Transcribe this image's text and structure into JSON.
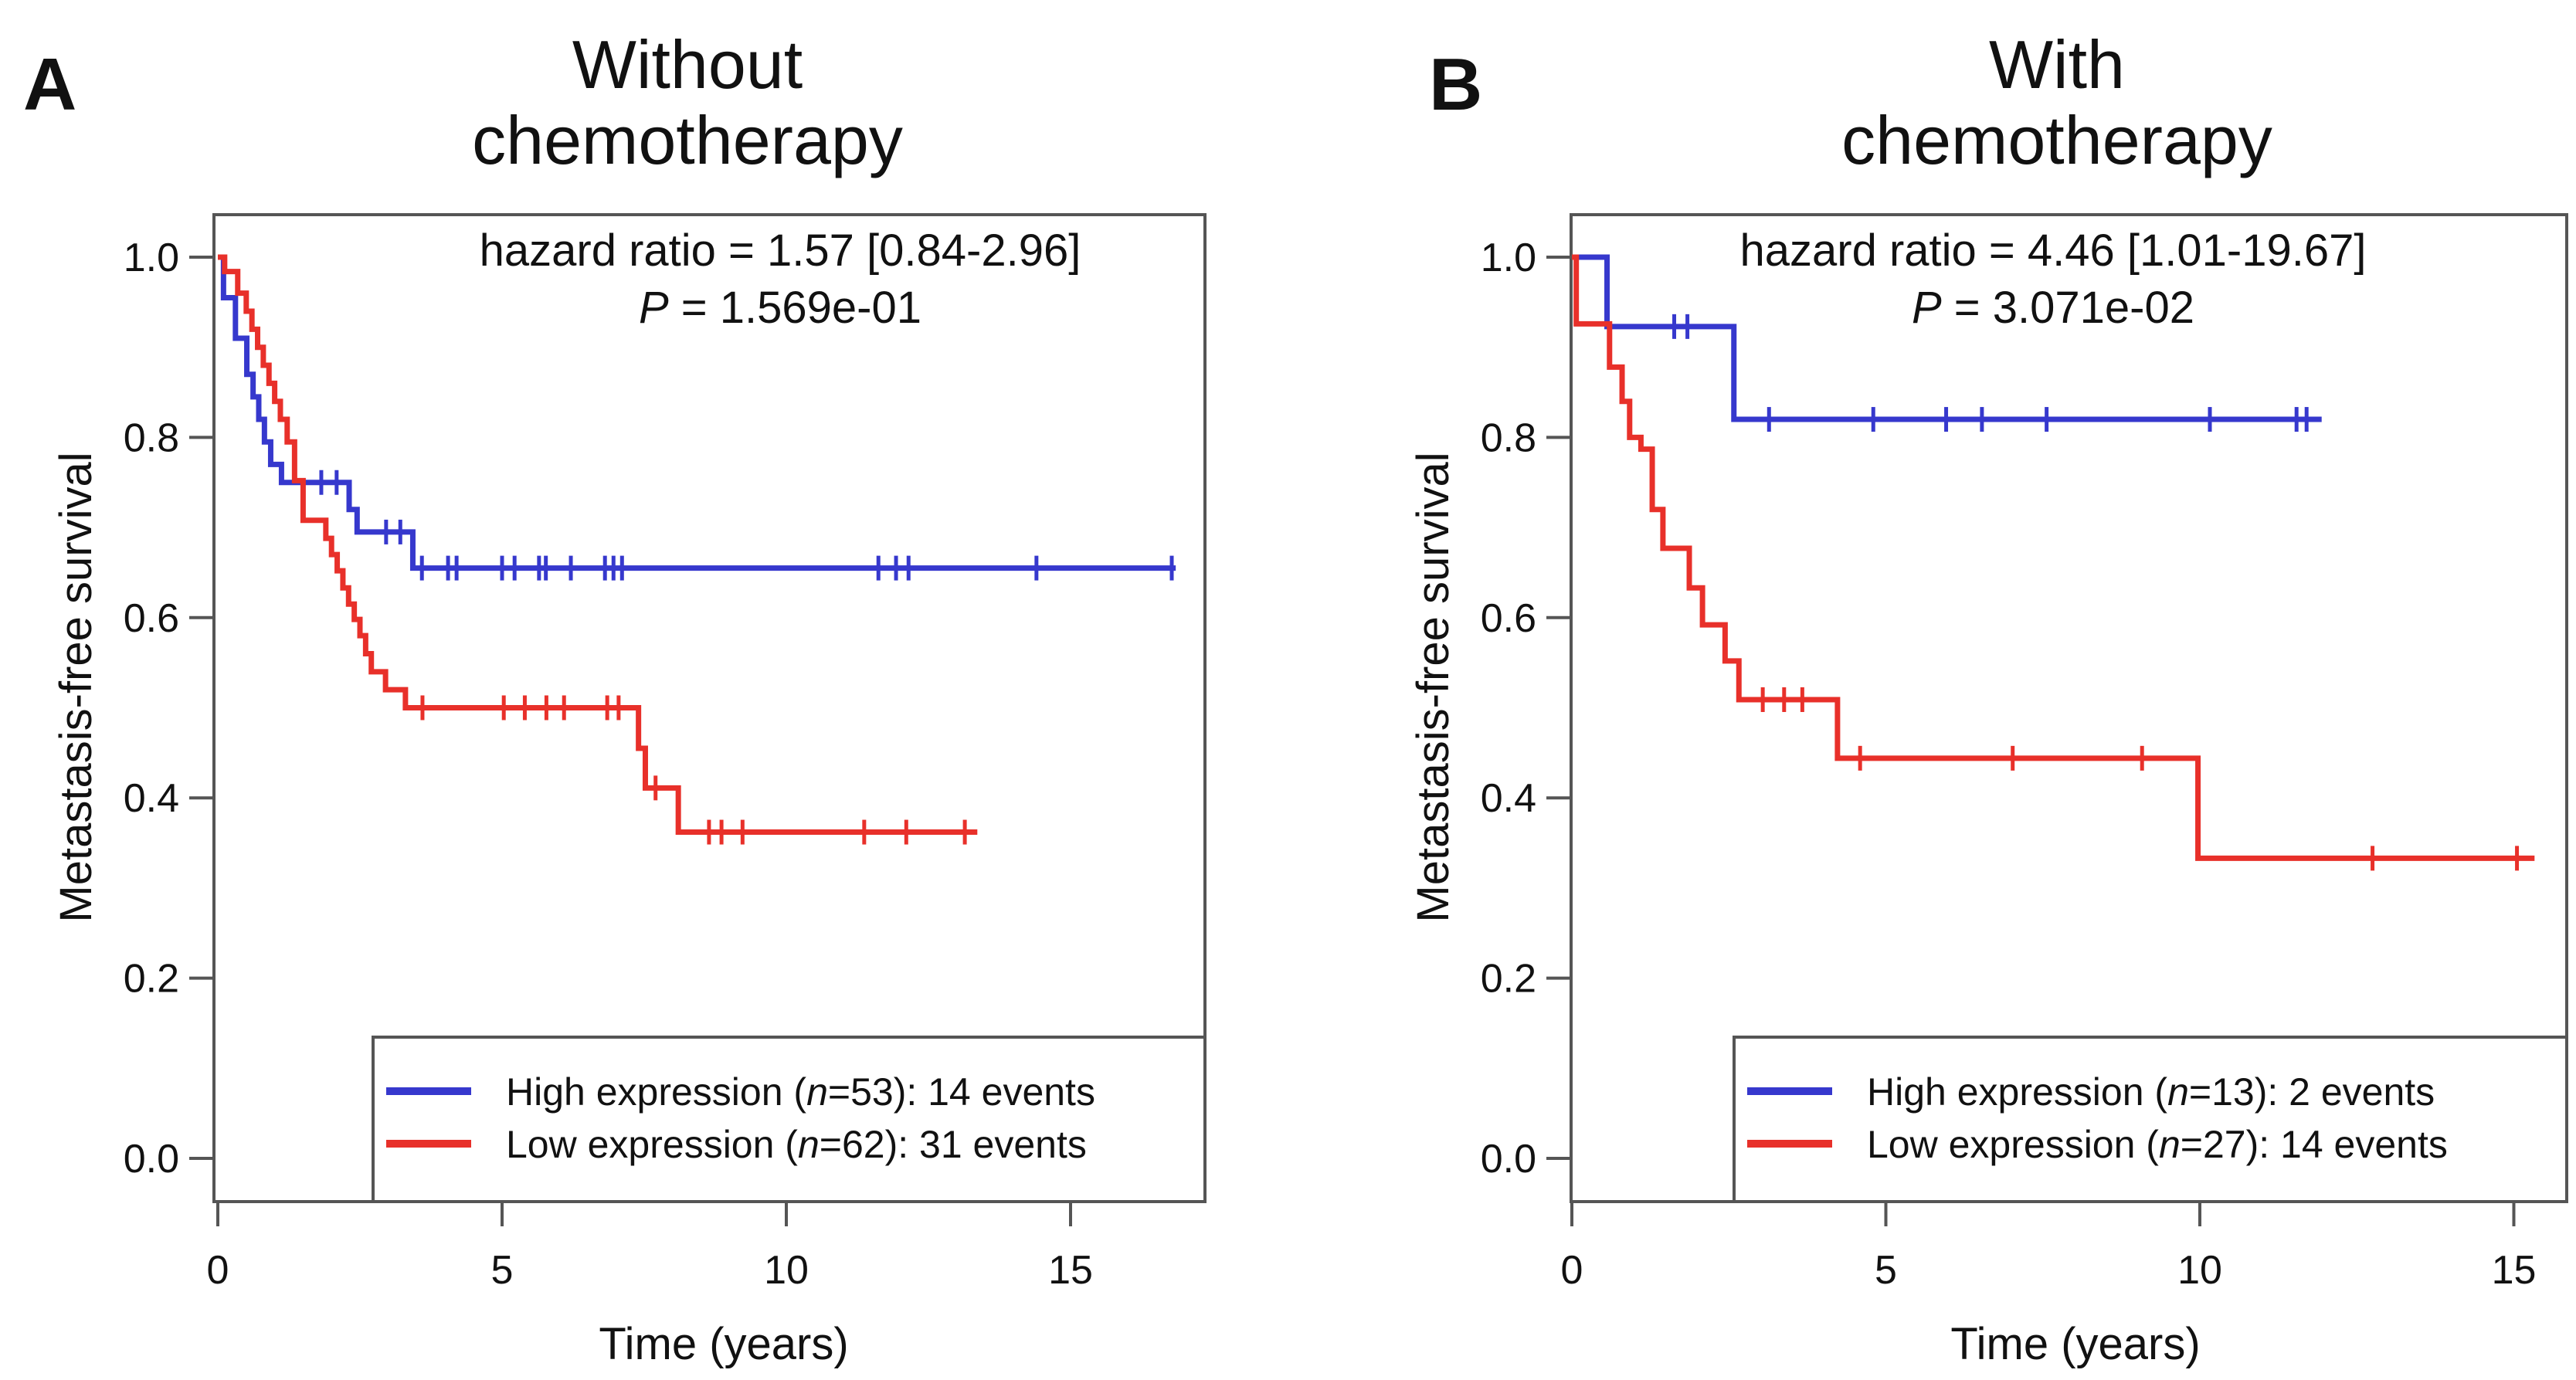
{
  "meta": {
    "background": "#ffffff",
    "axis_color": "#555555",
    "text_color": "#111111",
    "high_color": "#3638cd",
    "low_color": "#e8302a"
  },
  "chart_data": [
    {
      "type": "line",
      "subtype": "kaplan_meier_survival",
      "panel_label": "A",
      "title_lines": [
        "Without",
        "chemotherapy"
      ],
      "title": "Without chemotherapy",
      "xlabel": "Time (years)",
      "ylabel": "Metastasis-free survival",
      "xlim": [
        0,
        17.4
      ],
      "ylim": [
        0,
        1
      ],
      "xticks": [
        "0",
        "5",
        "10",
        "15"
      ],
      "yticks": [
        "1.0",
        "0.8",
        "0.6",
        "0.4",
        "0.2",
        "0.0"
      ],
      "grid": false,
      "legend_position": "bottom-right",
      "annotation": {
        "hazard_ratio_text": "hazard ratio = 1.57 [0.84-2.96]",
        "p_label": "P",
        "p_value_text": " = 1.569e-01"
      },
      "series": [
        {
          "name": "High expression",
          "color": "#3638cd",
          "n": 53,
          "events": 14,
          "legend_pre": "High expression (",
          "legend_n": "n",
          "legend_post": "=53): 14 events",
          "steps": [
            [
              0,
              1.0
            ],
            [
              0.1,
              0.955
            ],
            [
              0.31,
              0.91
            ],
            [
              0.51,
              0.87
            ],
            [
              0.62,
              0.845
            ],
            [
              0.72,
              0.82
            ],
            [
              0.82,
              0.795
            ],
            [
              0.93,
              0.77
            ],
            [
              1.12,
              0.75
            ],
            [
              2.31,
              0.72
            ],
            [
              2.45,
              0.695
            ],
            [
              3.43,
              0.655
            ]
          ],
          "end_time": 16.85,
          "censor_marks": [
            [
              1.82,
              0.75
            ],
            [
              2.09,
              0.75
            ],
            [
              2.96,
              0.695
            ],
            [
              3.21,
              0.695
            ],
            [
              3.59,
              0.655
            ],
            [
              4.05,
              0.655
            ],
            [
              4.2,
              0.655
            ],
            [
              5.0,
              0.655
            ],
            [
              5.22,
              0.655
            ],
            [
              5.65,
              0.655
            ],
            [
              5.77,
              0.655
            ],
            [
              6.21,
              0.655
            ],
            [
              6.81,
              0.655
            ],
            [
              6.96,
              0.655
            ],
            [
              7.11,
              0.655
            ],
            [
              11.62,
              0.655
            ],
            [
              11.93,
              0.655
            ],
            [
              12.15,
              0.655
            ],
            [
              14.4,
              0.655
            ],
            [
              16.78,
              0.655
            ]
          ]
        },
        {
          "name": "Low expression",
          "color": "#e8302a",
          "n": 62,
          "events": 31,
          "legend_pre": "Low expression (",
          "legend_n": "n",
          "legend_post": "=62): 31 events",
          "steps": [
            [
              0,
              1.0
            ],
            [
              0.12,
              0.984
            ],
            [
              0.35,
              0.96
            ],
            [
              0.5,
              0.94
            ],
            [
              0.6,
              0.92
            ],
            [
              0.7,
              0.9
            ],
            [
              0.8,
              0.88
            ],
            [
              0.9,
              0.86
            ],
            [
              1.0,
              0.84
            ],
            [
              1.1,
              0.82
            ],
            [
              1.22,
              0.795
            ],
            [
              1.35,
              0.752
            ],
            [
              1.5,
              0.708
            ],
            [
              1.9,
              0.688
            ],
            [
              2.0,
              0.67
            ],
            [
              2.1,
              0.652
            ],
            [
              2.2,
              0.633
            ],
            [
              2.3,
              0.615
            ],
            [
              2.4,
              0.598
            ],
            [
              2.5,
              0.58
            ],
            [
              2.6,
              0.56
            ],
            [
              2.7,
              0.54
            ],
            [
              2.95,
              0.52
            ],
            [
              3.3,
              0.5
            ],
            [
              7.4,
              0.455
            ],
            [
              7.52,
              0.411
            ],
            [
              8.1,
              0.362
            ]
          ],
          "end_time": 13.36,
          "censor_marks": [
            [
              3.6,
              0.5
            ],
            [
              5.03,
              0.5
            ],
            [
              5.4,
              0.5
            ],
            [
              5.78,
              0.5
            ],
            [
              6.09,
              0.5
            ],
            [
              6.85,
              0.5
            ],
            [
              7.05,
              0.5
            ],
            [
              7.7,
              0.411
            ],
            [
              8.64,
              0.362
            ],
            [
              8.86,
              0.362
            ],
            [
              9.23,
              0.362
            ],
            [
              11.37,
              0.362
            ],
            [
              12.11,
              0.362
            ],
            [
              13.14,
              0.362
            ]
          ]
        }
      ]
    },
    {
      "type": "line",
      "subtype": "kaplan_meier_survival",
      "panel_label": "B",
      "title_lines": [
        "With",
        "chemotherapy"
      ],
      "title": "With chemotherapy",
      "xlabel": "Time (years)",
      "ylabel": "Metastasis-free survival",
      "xlim": [
        0,
        15.8
      ],
      "ylim": [
        0,
        1
      ],
      "xticks": [
        "0",
        "5",
        "10",
        "15"
      ],
      "yticks": [
        "1.0",
        "0.8",
        "0.6",
        "0.4",
        "0.2",
        "0.0"
      ],
      "grid": false,
      "legend_position": "bottom-right",
      "annotation": {
        "hazard_ratio_text": "hazard ratio = 4.46 [1.01-19.67]",
        "p_label": "P",
        "p_value_text": " = 3.071e-02"
      },
      "series": [
        {
          "name": "High expression",
          "color": "#3638cd",
          "n": 13,
          "events": 2,
          "legend_pre": "High expression (",
          "legend_n": "n",
          "legend_post": "=13): 2 events",
          "steps": [
            [
              0,
              1.0
            ],
            [
              0.56,
              0.923
            ],
            [
              2.58,
              0.82
            ]
          ],
          "end_time": 11.94,
          "censor_marks": [
            [
              1.63,
              0.923
            ],
            [
              1.84,
              0.923
            ],
            [
              3.14,
              0.82
            ],
            [
              4.8,
              0.82
            ],
            [
              5.96,
              0.82
            ],
            [
              6.53,
              0.82
            ],
            [
              7.56,
              0.82
            ],
            [
              10.16,
              0.82
            ],
            [
              11.54,
              0.82
            ],
            [
              11.7,
              0.82
            ]
          ]
        },
        {
          "name": "Low expression",
          "color": "#e8302a",
          "n": 27,
          "events": 14,
          "legend_pre": "Low expression (",
          "legend_n": "n",
          "legend_post": "=27): 14 events",
          "steps": [
            [
              0,
              1.0
            ],
            [
              0.07,
              0.926
            ],
            [
              0.6,
              0.878
            ],
            [
              0.8,
              0.84
            ],
            [
              0.92,
              0.8
            ],
            [
              1.1,
              0.787
            ],
            [
              1.28,
              0.72
            ],
            [
              1.45,
              0.677
            ],
            [
              1.87,
              0.633
            ],
            [
              2.08,
              0.592
            ],
            [
              2.44,
              0.552
            ],
            [
              2.66,
              0.509
            ],
            [
              4.23,
              0.444
            ],
            [
              9.97,
              0.333
            ]
          ],
          "end_time": 15.33,
          "censor_marks": [
            [
              3.04,
              0.509
            ],
            [
              3.38,
              0.509
            ],
            [
              3.67,
              0.509
            ],
            [
              4.59,
              0.444
            ],
            [
              7.02,
              0.444
            ],
            [
              9.08,
              0.444
            ],
            [
              12.75,
              0.333
            ],
            [
              15.05,
              0.333
            ]
          ]
        }
      ]
    }
  ]
}
